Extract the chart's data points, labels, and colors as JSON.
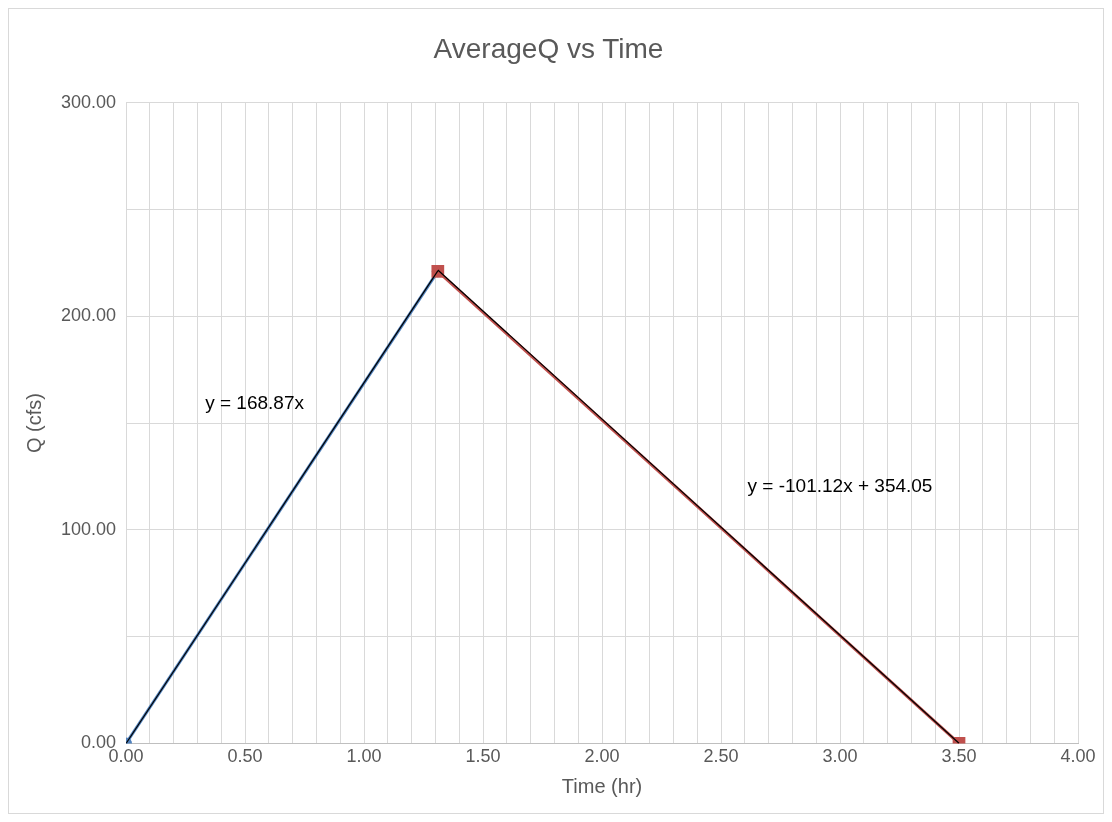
{
  "chart_data": {
    "type": "scatter",
    "title": "AverageQ vs Time",
    "xlabel": "Time (hr)",
    "ylabel": "Q (cfs)",
    "xlim": [
      0,
      4
    ],
    "ylim": [
      0,
      300
    ],
    "xticks": [
      {
        "value": 0,
        "label": "0.00"
      },
      {
        "value": 0.1,
        "label": null
      },
      {
        "value": 0.2,
        "label": null
      },
      {
        "value": 0.3,
        "label": null
      },
      {
        "value": 0.4,
        "label": null
      },
      {
        "value": 0.5,
        "label": "0.50"
      },
      {
        "value": 0.6,
        "label": null
      },
      {
        "value": 0.7,
        "label": null
      },
      {
        "value": 0.8,
        "label": null
      },
      {
        "value": 0.9,
        "label": null
      },
      {
        "value": 1,
        "label": "1.00"
      },
      {
        "value": 1.1,
        "label": null
      },
      {
        "value": 1.2,
        "label": null
      },
      {
        "value": 1.3,
        "label": null
      },
      {
        "value": 1.4,
        "label": null
      },
      {
        "value": 1.5,
        "label": "1.50"
      },
      {
        "value": 1.6,
        "label": null
      },
      {
        "value": 1.7,
        "label": null
      },
      {
        "value": 1.8,
        "label": null
      },
      {
        "value": 1.9,
        "label": null
      },
      {
        "value": 2,
        "label": "2.00"
      },
      {
        "value": 2.1,
        "label": null
      },
      {
        "value": 2.2,
        "label": null
      },
      {
        "value": 2.3,
        "label": null
      },
      {
        "value": 2.4,
        "label": null
      },
      {
        "value": 2.5,
        "label": "2.50"
      },
      {
        "value": 2.6,
        "label": null
      },
      {
        "value": 2.7,
        "label": null
      },
      {
        "value": 2.8,
        "label": null
      },
      {
        "value": 2.9,
        "label": null
      },
      {
        "value": 3,
        "label": "3.00"
      },
      {
        "value": 3.1,
        "label": null
      },
      {
        "value": 3.2,
        "label": null
      },
      {
        "value": 3.3,
        "label": null
      },
      {
        "value": 3.4,
        "label": null
      },
      {
        "value": 3.5,
        "label": "3.50"
      },
      {
        "value": 3.6,
        "label": null
      },
      {
        "value": 3.7,
        "label": null
      },
      {
        "value": 3.8,
        "label": null
      },
      {
        "value": 3.9,
        "label": null
      },
      {
        "value": 4,
        "label": "4.00"
      }
    ],
    "yticks": [
      {
        "value": 0,
        "label": "0.00"
      },
      {
        "value": 50,
        "label": null
      },
      {
        "value": 100,
        "label": "100.00"
      },
      {
        "value": 150,
        "label": null
      },
      {
        "value": 200,
        "label": "200.00"
      },
      {
        "value": 250,
        "label": null
      },
      {
        "value": 300,
        "label": "300.00"
      }
    ],
    "grid": true,
    "legend": false,
    "series": [
      {
        "type": "line",
        "color": "#4f81bd",
        "marker": "circle",
        "x": [
          0,
          1.31
        ],
        "values": [
          0,
          221
        ]
      },
      {
        "type": "line",
        "color": "#c0504d",
        "marker": "square",
        "x": [
          1.31,
          3.5
        ],
        "values": [
          221,
          0
        ]
      },
      {
        "type": "line",
        "color": "#000000",
        "marker": "none",
        "x": [
          0,
          1.31
        ],
        "values": [
          0,
          221.2
        ]
      },
      {
        "type": "line",
        "color": "#000000",
        "marker": "none",
        "x": [
          1.31,
          3.5
        ],
        "values": [
          221.6,
          0.1
        ]
      }
    ],
    "annotations": [
      "y = 168.87x",
      "y = -101.12x + 354.05"
    ]
  }
}
